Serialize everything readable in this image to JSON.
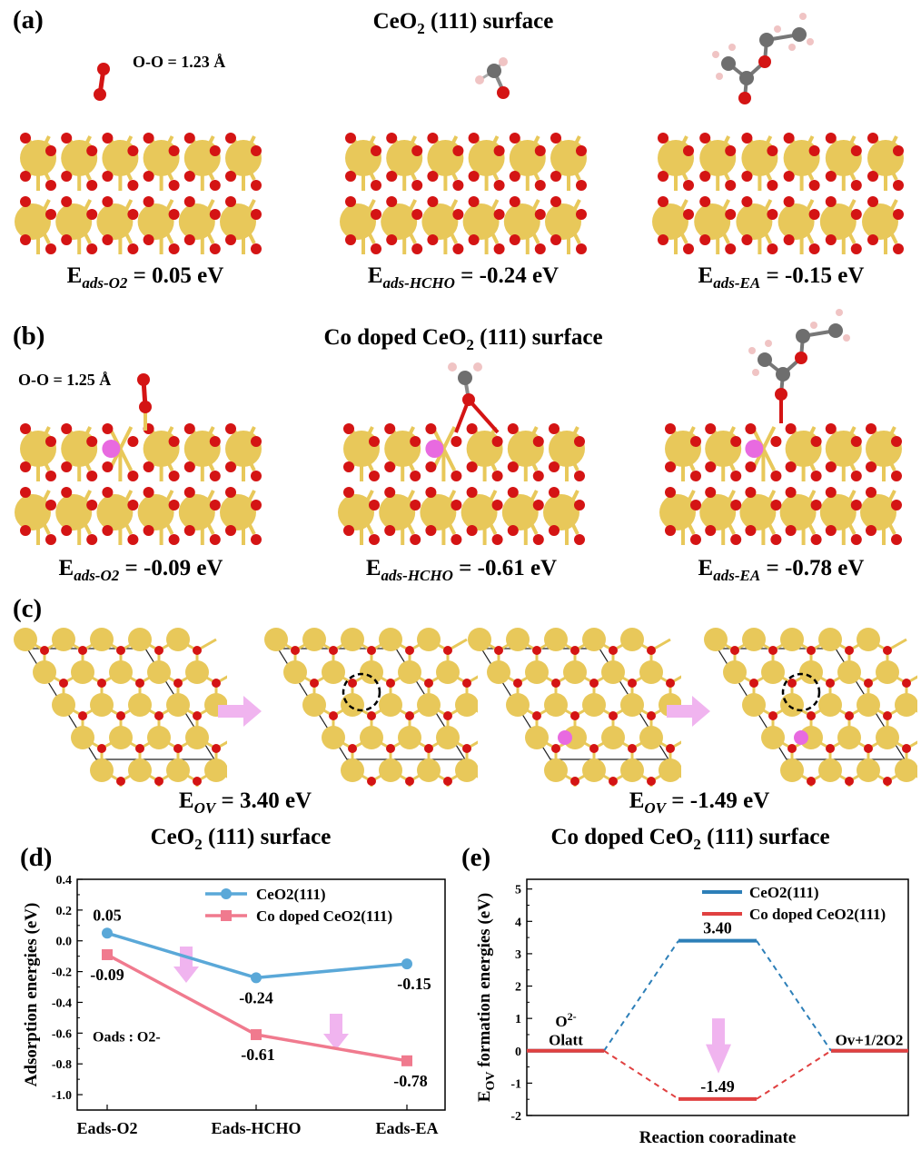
{
  "colors": {
    "ceria_ce": "#e8c85a",
    "oxygen": "#d41414",
    "cobalt": "#e86ae0",
    "carbon": "#6e6e6e",
    "hydrogen": "#f0c4c4",
    "arrow": "#f0b4ef",
    "ceo2_series": "#5aa8d8",
    "co_series": "#f07a8e",
    "e_ceo2_line": "#2d7fb8",
    "e_co_line": "#e04040"
  },
  "panel_a": {
    "label": "(a)",
    "title_main": "CeO",
    "title_sub": "2",
    "title_tail": " (111) surface",
    "oo_label": "O-O = 1.23 Å",
    "energies": [
      {
        "e": "E",
        "sub": "ads-O2",
        "value": " = 0.05 eV"
      },
      {
        "e": "E",
        "sub": "ads-HCHO",
        "value": " = -0.24 eV"
      },
      {
        "e": "E",
        "sub": "ads-EA",
        "value": " = -0.15 eV"
      }
    ]
  },
  "panel_b": {
    "label": "(b)",
    "title_main": "Co doped CeO",
    "title_sub": "2",
    "title_tail": " (111) surface",
    "oo_label": "O-O = 1.25 Å",
    "energies": [
      {
        "e": "E",
        "sub": "ads-O2",
        "value": " = -0.09 eV"
      },
      {
        "e": "E",
        "sub": "ads-HCHO",
        "value": " = -0.61 eV"
      },
      {
        "e": "E",
        "sub": "ads-EA",
        "value": " = -0.78 eV"
      }
    ]
  },
  "panel_c": {
    "label": "(c)",
    "energies": [
      {
        "e": "E",
        "sub": "OV",
        "value": " = 3.40 eV"
      },
      {
        "e": "E",
        "sub": "OV",
        "value": " = -1.49 eV"
      }
    ],
    "captions": [
      {
        "main": "CeO",
        "sub": "2",
        "tail": " (111) surface"
      },
      {
        "main": "Co doped CeO",
        "sub": "2",
        "tail": " (111) surface"
      }
    ]
  },
  "chart_data": [
    {
      "panel": "(d)",
      "type": "line",
      "ylabel": "Adsorption energies (eV)",
      "xlabel": "",
      "categories": [
        "Eads-O2",
        "Eads-HCHO",
        "Eads-EA"
      ],
      "ylim": [
        -1.1,
        0.4
      ],
      "yticks": [
        "0.4",
        "0.2",
        "0.0",
        "-0.2",
        "-0.4",
        "-0.6",
        "-0.8",
        "-1.0"
      ],
      "series": [
        {
          "name": "CeO2(111)",
          "marker": "circle",
          "values": [
            0.05,
            -0.24,
            -0.15
          ],
          "labels": [
            "0.05",
            "-0.24",
            "-0.15"
          ]
        },
        {
          "name": "Co doped CeO2(111)",
          "marker": "square",
          "values": [
            -0.09,
            -0.61,
            -0.78
          ],
          "labels": [
            "-0.09",
            "-0.61",
            "-0.78"
          ]
        }
      ],
      "annotation": "Oads : O2-",
      "legend": "top-right"
    },
    {
      "panel": "(e)",
      "type": "line",
      "ylabel": "E",
      "ylabel_sub": "OV",
      "ylabel_tail": " formation energies (eV)",
      "xlabel": "Reaction cooradinate",
      "ylim": [
        -2,
        5.3
      ],
      "yticks": [
        "5",
        "4",
        "3",
        "2",
        "1",
        "0",
        "-1",
        "-2"
      ],
      "states": [
        "O2- Olatt",
        "Ov+1/2O2"
      ],
      "state_label_left_top": "O",
      "state_label_left_top_sup": "2-",
      "state_label_left_bottom": "Olatt",
      "state_label_right": "Ov+1/2O2",
      "series": [
        {
          "name": "CeO2(111)",
          "values": [
            0,
            3.4,
            0
          ],
          "label": "3.40"
        },
        {
          "name": "Co doped CeO2(111)",
          "values": [
            0,
            -1.49,
            0
          ],
          "label": "-1.49"
        }
      ],
      "legend": "top-right"
    }
  ]
}
